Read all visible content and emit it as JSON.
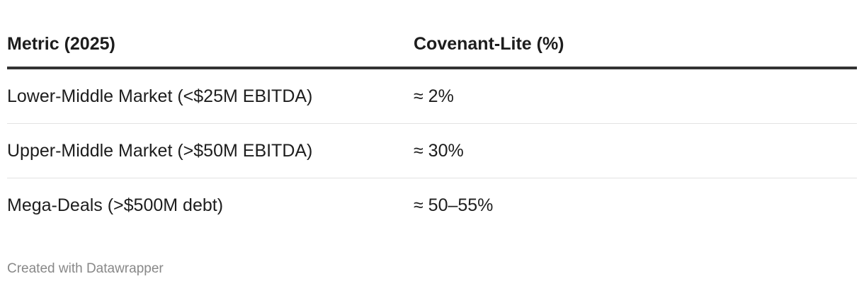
{
  "table": {
    "header": [
      "Metric (2025)",
      "Covenant-Lite (%)"
    ],
    "rows": [
      [
        "Lower-Middle Market (<$25M EBITDA)",
        "≈ 2%"
      ],
      [
        "Upper-Middle Market (>$50M EBITDA)",
        "≈ 30%"
      ],
      [
        "Mega-Deals (>$500M debt)",
        "≈ 50–55%"
      ]
    ]
  },
  "footer": {
    "credit": "Created with Datawrapper"
  }
}
